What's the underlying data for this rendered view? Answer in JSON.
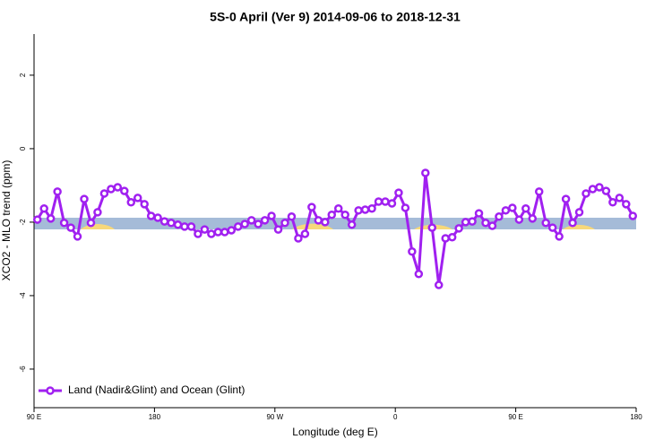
{
  "chart_data": {
    "type": "line",
    "title": "5S-0 April (Ver 9)   2014-09-06 to 2018-12-31",
    "x_label": "Longitude (deg E)",
    "y_label": "XCO2 - MLO trend (ppm)",
    "xlim": [
      90,
      540
    ],
    "ylim": [
      -7.05,
      3.12
    ],
    "xticks": [
      {
        "value": 90,
        "label": "90 E"
      },
      180,
      {
        "value": 270,
        "label": "90 W"
      },
      {
        "value": 360,
        "label": "0"
      },
      {
        "value": 450,
        "label": "90 E"
      },
      {
        "value": 540,
        "label": "180"
      }
    ],
    "yticks": [
      -6,
      -4,
      -2,
      0,
      2
    ],
    "legend": "bottomleft",
    "x": [
      92.5,
      97.5,
      102.5,
      107.5,
      112.5,
      117.5,
      122.5,
      127.5,
      132.5,
      137.5,
      142.5,
      147.5,
      152.5,
      157.5,
      162.5,
      167.5,
      172.5,
      177.5,
      182.5,
      187.5,
      192.5,
      197.5,
      202.5,
      207.5,
      212.5,
      217.5,
      222.5,
      227.5,
      232.5,
      237.5,
      242.5,
      247.5,
      252.5,
      257.5,
      262.5,
      267.5,
      272.5,
      277.5,
      282.5,
      287.5,
      292.5,
      297.5,
      302.5,
      307.5,
      312.5,
      317.5,
      322.5,
      327.5,
      332.5,
      337.5,
      342.5,
      347.5,
      352.5,
      357.5,
      362.5,
      367.5,
      372.5,
      377.5,
      382.5,
      387.5,
      392.5,
      397.5,
      402.5,
      407.5,
      412.5,
      417.5,
      422.5,
      427.5,
      432.5,
      437.5,
      442.5,
      447.5,
      452.5,
      457.5,
      462.5,
      467.5,
      472.5,
      477.5,
      482.5,
      487.5,
      492.5,
      497.5,
      502.5,
      507.5,
      512.5,
      517.5,
      522.5,
      527.5,
      532.5,
      537.5
    ],
    "series": [
      {
        "name": "Land (Nadir&Glint) and Ocean (Glint)",
        "color": "#a020f0",
        "values": [
          -1.93,
          -1.63,
          -1.9,
          -1.17,
          -2.02,
          -2.15,
          -2.39,
          -1.37,
          -2.02,
          -1.73,
          -1.22,
          -1.1,
          -1.05,
          -1.15,
          -1.46,
          -1.34,
          -1.51,
          -1.83,
          -1.88,
          -1.98,
          -2.02,
          -2.07,
          -2.12,
          -2.12,
          -2.32,
          -2.2,
          -2.32,
          -2.27,
          -2.27,
          -2.22,
          -2.12,
          -2.05,
          -1.95,
          -2.05,
          -1.95,
          -1.83,
          -2.2,
          -2.02,
          -1.85,
          -2.44,
          -2.32,
          -1.59,
          -1.95,
          -2.0,
          -1.8,
          -1.63,
          -1.8,
          -2.07,
          -1.68,
          -1.66,
          -1.63,
          -1.44,
          -1.44,
          -1.49,
          -1.2,
          -1.61,
          -2.8,
          -3.41,
          -0.66,
          -2.15,
          -3.71,
          -2.44,
          -2.41,
          -2.17,
          -2.0,
          -1.98,
          -1.76,
          -2.02,
          -2.1,
          -1.85,
          -1.68,
          -1.61,
          -1.93,
          -1.63,
          -1.9,
          -1.17,
          -2.02,
          -2.15,
          -2.39,
          -1.37,
          -2.02,
          -1.73,
          -1.22,
          -1.1,
          -1.05,
          -1.15,
          -1.46,
          -1.34,
          -1.51,
          -1.83
        ]
      }
    ]
  }
}
